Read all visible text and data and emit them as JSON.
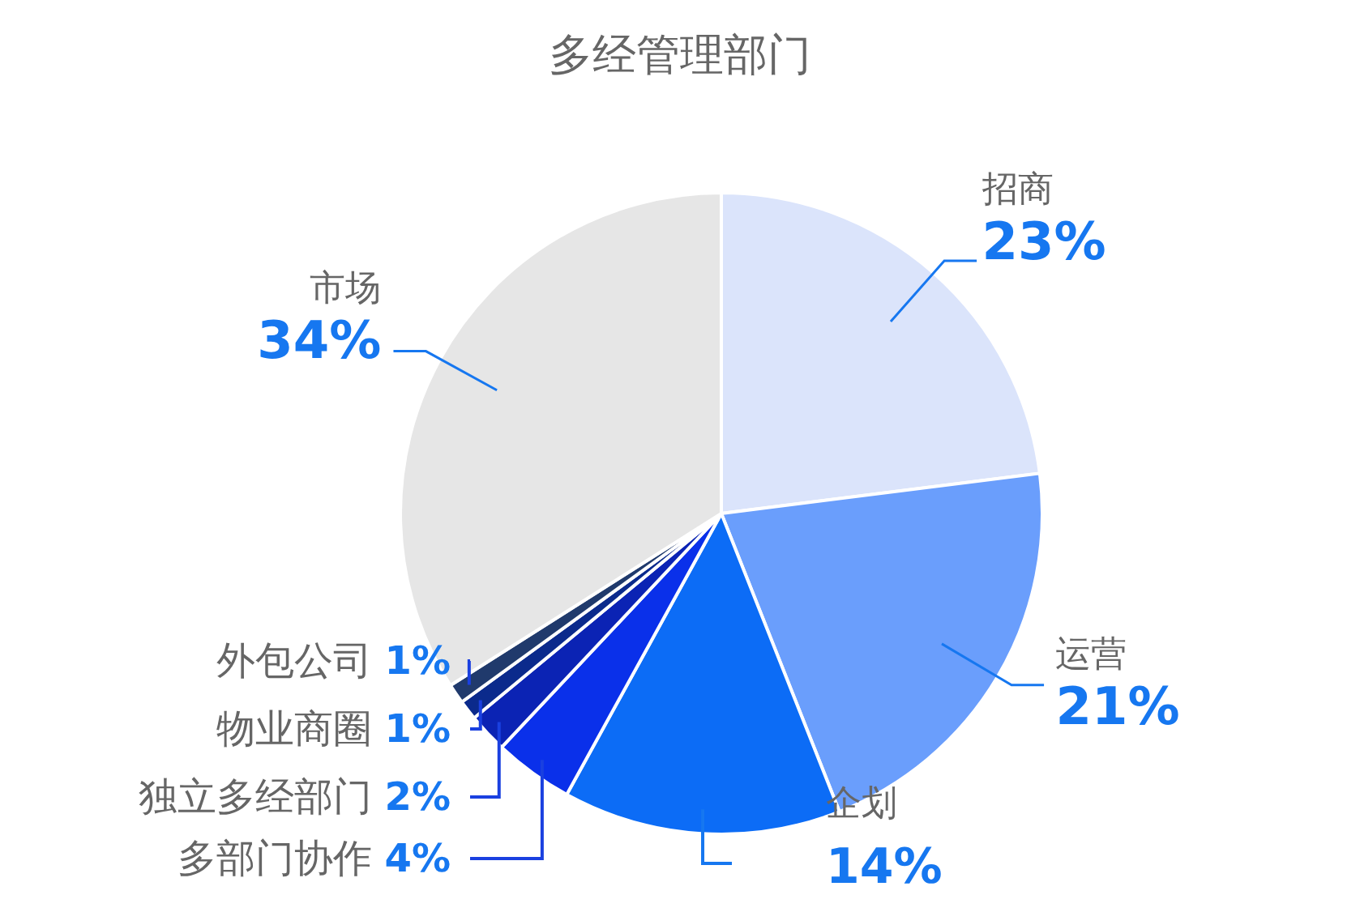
{
  "chart_data": {
    "type": "pie",
    "title": "多经管理部门",
    "categories": [
      "招商",
      "运营",
      "企划",
      "多部门协作",
      "独立多经部门",
      "物业商圈",
      "外包公司",
      "市场"
    ],
    "values": [
      23,
      21,
      14,
      4,
      2,
      1,
      1,
      34
    ],
    "value_labels": [
      "23%",
      "21%",
      "14%",
      "4%",
      "2%",
      "1%",
      "1%",
      "34%"
    ],
    "colors": [
      "#dbe4fb",
      "#6a9efc",
      "#0c6cf6",
      "#0a30ea",
      "#0b23b4",
      "#0b2a8c",
      "#203a6c",
      "#e6e6e6"
    ]
  }
}
